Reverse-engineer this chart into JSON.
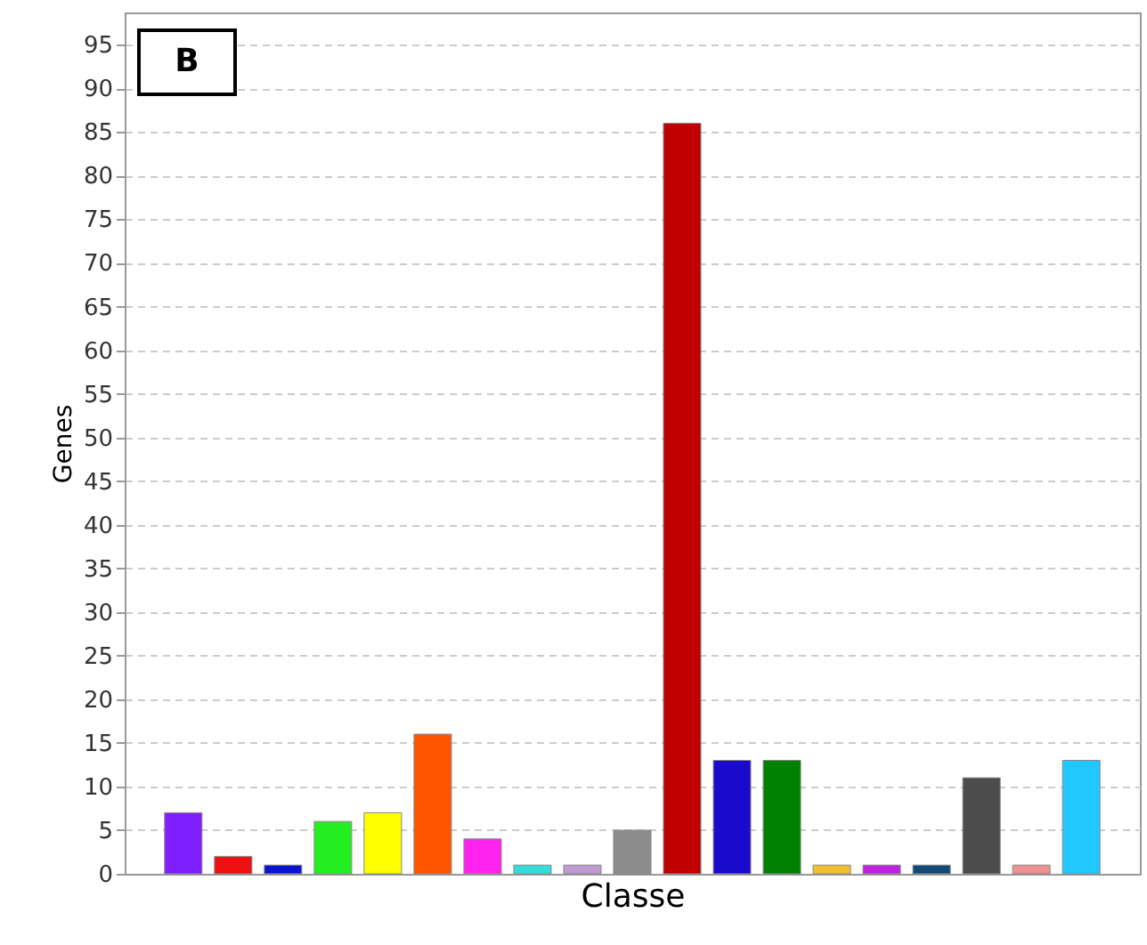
{
  "chart_data": {
    "type": "bar",
    "xlabel": "Classe",
    "ylabel": "Genes",
    "categories": [
      null,
      null,
      null,
      null,
      null,
      null,
      null,
      null,
      null,
      null,
      null,
      null,
      null,
      null,
      null,
      null,
      null,
      null,
      null
    ],
    "values": [
      7,
      2,
      1,
      6,
      7,
      16,
      4,
      1,
      1,
      5,
      86,
      13,
      13,
      1,
      1,
      1,
      11,
      1,
      13
    ],
    "colors": [
      "#7f1fff",
      "#ee1111",
      "#0a14d0",
      "#22ee22",
      "#ffff00",
      "#ff5500",
      "#ff22ee",
      "#33dddd",
      "#c09ad0",
      "#8c8c8c",
      "#c00000",
      "#1a0acc",
      "#008000",
      "#f0c030",
      "#c020e0",
      "#0f4a78",
      "#4c4c4c",
      "#f09090",
      "#20c8ff"
    ],
    "ylim": [
      0,
      98.7
    ],
    "yticks": [
      0,
      5,
      10,
      15,
      20,
      25,
      30,
      35,
      40,
      45,
      50,
      55,
      60,
      65,
      70,
      75,
      80,
      85,
      90,
      95
    ],
    "grid": "y",
    "tick_labels": "y",
    "annotations": [
      "B"
    ]
  }
}
